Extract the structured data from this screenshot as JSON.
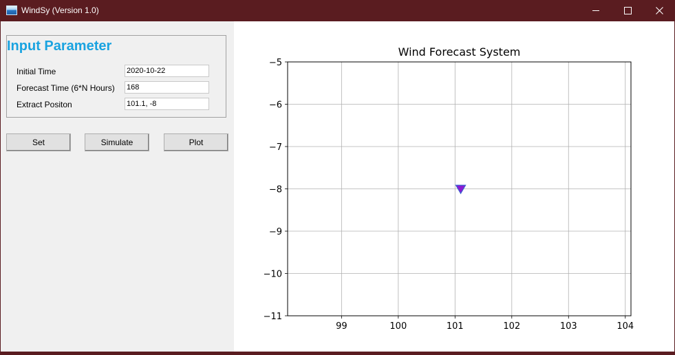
{
  "window": {
    "title": "WindSy (Version 1.0)"
  },
  "params": {
    "heading": "Input Parameter",
    "fields": [
      {
        "label": "Initial Time",
        "value": "2020-10-22"
      },
      {
        "label": "Forecast Time (6*N Hours)",
        "value": "168"
      },
      {
        "label": "Extract Positon",
        "value": "101.1, -8"
      }
    ]
  },
  "buttons": {
    "set": "Set",
    "simulate": "Simulate",
    "plot": "Plot"
  },
  "chart_data": {
    "type": "scatter",
    "title": "Wind Forecast System",
    "xlabel": "",
    "ylabel": "",
    "xlim": [
      98.05,
      104.1
    ],
    "ylim": [
      -11,
      -5
    ],
    "xticks": [
      99,
      100,
      101,
      102,
      103,
      104
    ],
    "yticks": [
      -5,
      -6,
      -7,
      -8,
      -9,
      -10,
      -11
    ],
    "xtick_labels": [
      "99",
      "100",
      "101",
      "102",
      "103",
      "104"
    ],
    "ytick_labels": [
      "−5",
      "−6",
      "−7",
      "−8",
      "−9",
      "−10",
      "−11"
    ],
    "grid": true,
    "points": [
      {
        "x": 101.1,
        "y": -8,
        "marker": "triangle-down",
        "color": "#8b1ad2"
      }
    ]
  }
}
